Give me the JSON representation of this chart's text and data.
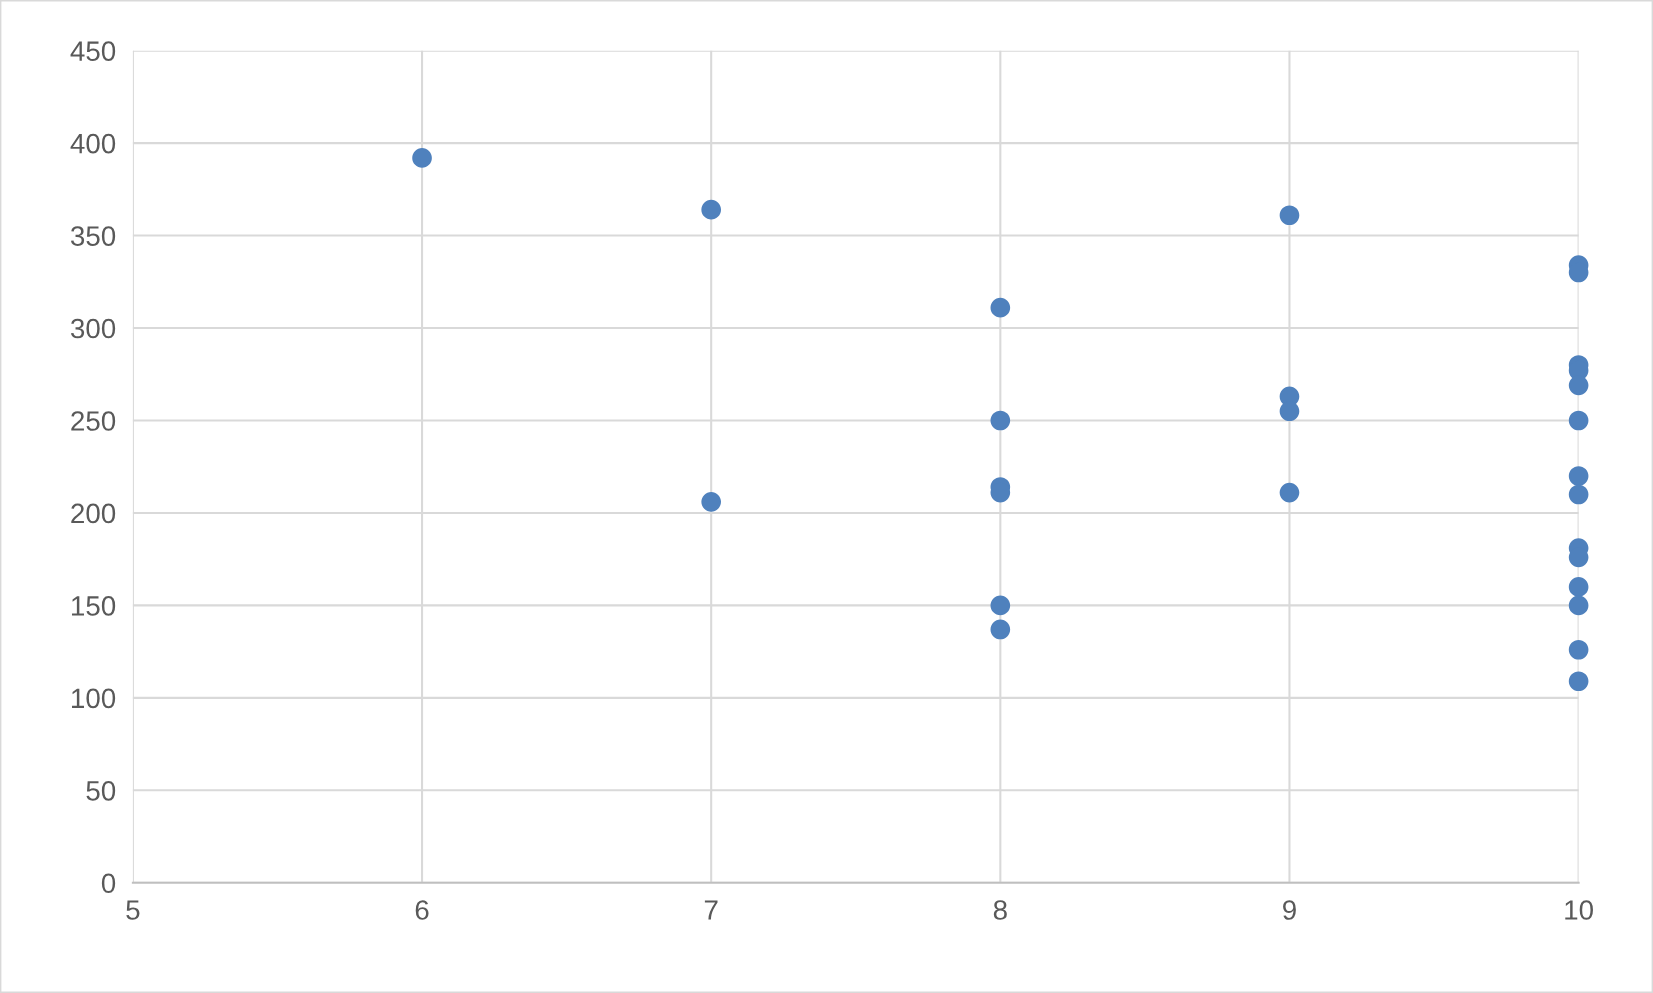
{
  "chart_data": {
    "type": "scatter",
    "marker": "circle",
    "grid": true,
    "x": [
      6,
      7,
      7,
      8,
      8,
      8,
      8,
      8,
      8,
      9,
      9,
      9,
      9,
      10,
      10,
      10,
      10,
      10,
      10,
      10,
      10,
      10,
      10,
      10,
      10,
      10,
      10
    ],
    "series": [
      {
        "color": "#4f81bd",
        "values": [
          392,
          364,
          206,
          311,
          250,
          214,
          211,
          150,
          137,
          361,
          263,
          255,
          211,
          334,
          330,
          280,
          277,
          269,
          250,
          220,
          210,
          181,
          176,
          160,
          150,
          126,
          109
        ]
      }
    ],
    "xlim": [
      5,
      10
    ],
    "xticks": [
      5,
      6,
      7,
      8,
      9,
      10
    ],
    "ylim": [
      0,
      450
    ],
    "yticks": [
      0,
      50,
      100,
      150,
      200,
      250,
      300,
      350,
      400,
      450
    ]
  }
}
